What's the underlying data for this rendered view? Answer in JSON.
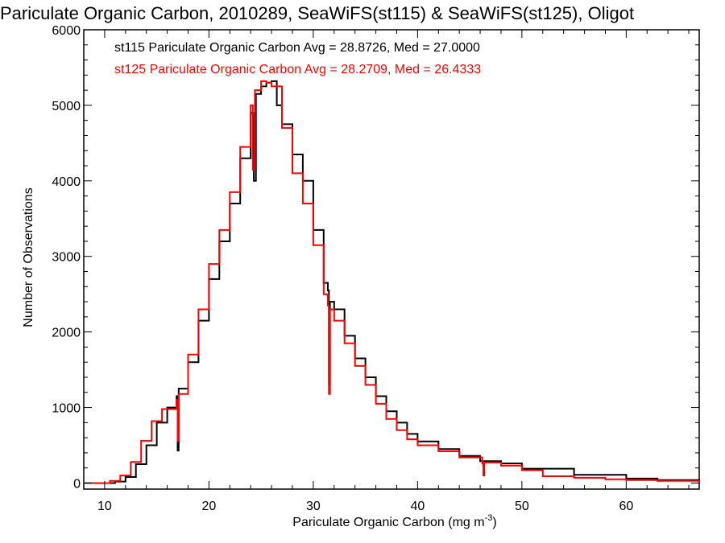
{
  "chart_data": {
    "type": "line",
    "title": "Pariculate Organic Carbon, 2010289, SeaWiFS(st115) & SeaWiFS(st125), Oligot",
    "xlabel": "Pariculate Organic Carbon (mg m",
    "xlabel_sup": "-3",
    "xlabel_close": ")",
    "ylabel": "Number of Observations",
    "xlim": [
      8,
      67
    ],
    "ylim": [
      -80,
      6000
    ],
    "xticks": [
      10,
      20,
      30,
      40,
      50,
      60
    ],
    "xtick_labels": [
      "10",
      "20",
      "30",
      "40",
      "50",
      "60"
    ],
    "yticks": [
      0,
      1000,
      2000,
      3000,
      4000,
      5000,
      6000
    ],
    "ytick_labels": [
      "0",
      "1000",
      "2000",
      "3000",
      "4000",
      "5000",
      "6000"
    ],
    "grid": false,
    "step_style": "histogram",
    "annotations": [
      {
        "text": "st115 Pariculate Organic Carbon Avg = 28.8726, Med = 27.0000",
        "color": "#000000"
      },
      {
        "text": "st125 Pariculate Organic Carbon Avg = 28.2709, Med = 26.4333",
        "color": "#ff0000"
      }
    ],
    "series": [
      {
        "color": "#000000",
        "points": [
          [
            8,
            0
          ],
          [
            11,
            20
          ],
          [
            12,
            80
          ],
          [
            13,
            250
          ],
          [
            14,
            500
          ],
          [
            15,
            800
          ],
          [
            16,
            1000
          ],
          [
            16.9,
            1150
          ],
          [
            17.0,
            430
          ],
          [
            17.1,
            1250
          ],
          [
            18,
            1600
          ],
          [
            19,
            2150
          ],
          [
            20,
            2700
          ],
          [
            21,
            3200
          ],
          [
            22,
            3700
          ],
          [
            23,
            4300
          ],
          [
            24,
            4900
          ],
          [
            24.3,
            4000
          ],
          [
            24.5,
            5150
          ],
          [
            25,
            5250
          ],
          [
            25.5,
            5300
          ],
          [
            26,
            5320
          ],
          [
            26.5,
            5000
          ],
          [
            27,
            4750
          ],
          [
            28,
            4350
          ],
          [
            29,
            4000
          ],
          [
            30,
            3350
          ],
          [
            31,
            2650
          ],
          [
            31.4,
            2550
          ],
          [
            31.5,
            1300
          ],
          [
            31.6,
            2400
          ],
          [
            32,
            2300
          ],
          [
            33,
            1950
          ],
          [
            34,
            1650
          ],
          [
            35,
            1400
          ],
          [
            36,
            1150
          ],
          [
            37,
            950
          ],
          [
            38,
            800
          ],
          [
            39,
            650
          ],
          [
            40,
            550
          ],
          [
            42,
            450
          ],
          [
            44,
            360
          ],
          [
            46,
            290
          ],
          [
            48,
            260
          ],
          [
            50,
            190
          ],
          [
            55,
            110
          ],
          [
            60,
            60
          ],
          [
            63,
            40
          ],
          [
            67,
            20
          ]
        ]
      },
      {
        "color": "#ff0000",
        "points": [
          [
            8,
            0
          ],
          [
            10.5,
            30
          ],
          [
            11.5,
            100
          ],
          [
            12.5,
            280
          ],
          [
            13.5,
            560
          ],
          [
            14.5,
            820
          ],
          [
            15.5,
            980
          ],
          [
            16.9,
            1100
          ],
          [
            17.0,
            560
          ],
          [
            17.1,
            1180
          ],
          [
            18,
            1700
          ],
          [
            19,
            2300
          ],
          [
            20,
            2900
          ],
          [
            21,
            3350
          ],
          [
            22,
            3850
          ],
          [
            23,
            4450
          ],
          [
            24,
            5000
          ],
          [
            24.2,
            4150
          ],
          [
            24.4,
            5200
          ],
          [
            25,
            5320
          ],
          [
            25.5,
            5300
          ],
          [
            26,
            5250
          ],
          [
            27,
            4700
          ],
          [
            28,
            4100
          ],
          [
            29,
            3700
          ],
          [
            30,
            3150
          ],
          [
            31,
            2500
          ],
          [
            31.4,
            2350
          ],
          [
            31.5,
            1180
          ],
          [
            31.6,
            2300
          ],
          [
            32,
            2150
          ],
          [
            33,
            1850
          ],
          [
            34,
            1550
          ],
          [
            35,
            1300
          ],
          [
            36,
            1050
          ],
          [
            37,
            850
          ],
          [
            38,
            700
          ],
          [
            39,
            580
          ],
          [
            40,
            500
          ],
          [
            42,
            420
          ],
          [
            44,
            340
          ],
          [
            46.2,
            260
          ],
          [
            46.3,
            100
          ],
          [
            46.4,
            270
          ],
          [
            48,
            230
          ],
          [
            50,
            170
          ],
          [
            52,
            90
          ],
          [
            55,
            70
          ],
          [
            58,
            50
          ],
          [
            60,
            40
          ],
          [
            63,
            30
          ],
          [
            67,
            15
          ]
        ]
      }
    ]
  }
}
